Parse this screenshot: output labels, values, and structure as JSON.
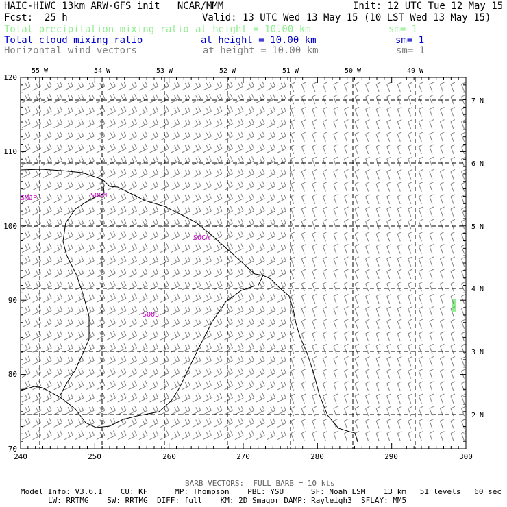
{
  "header": {
    "model_title": "HAIC-HIWC 13km ARW-GFS init   NCAR/MMM",
    "init": "Init: 12 UTC Tue 12 May 15",
    "fcst_label": "Fcst:",
    "fcst_value": "25 h",
    "valid": "Valid: 13 UTC Wed 13 May 15 (10 LST Wed 13 May 15)",
    "fields": [
      {
        "name": "Total precipitation mixing ratio",
        "level": "at height = 10.00 km",
        "sm": "sm= 1",
        "color": "#90ee90"
      },
      {
        "name": "Total cloud mixing ratio",
        "level": "at height = 10.00 km",
        "sm": "sm= 1",
        "color": "#0000cc"
      },
      {
        "name": "Horizontal wind vectors",
        "level": "at height = 10.00 km",
        "sm": "sm= 1",
        "color": "#808080"
      }
    ]
  },
  "map": {
    "x_ticks": [
      "240",
      "250",
      "260",
      "270",
      "280",
      "290",
      "300"
    ],
    "y_ticks": [
      "70",
      "80",
      "90",
      "100",
      "110",
      "120"
    ],
    "lon_labels": [
      "55 W",
      "54 W",
      "53 W",
      "52 W",
      "51 W",
      "50 W",
      "49 W"
    ],
    "lat_labels": [
      "7 N",
      "6 N",
      "5 N",
      "4 N",
      "3 N",
      "2 N"
    ],
    "stations": [
      "SMJP",
      "SOGM",
      "SOCA",
      "SOOS"
    ],
    "station_color": "#cc00cc",
    "coast_color": "#000000",
    "grid_color": "#000000",
    "barb_color": "#808080",
    "echo_color": "#90ee90"
  },
  "footer": {
    "barb_note": "BARB VECTORS:  FULL BARB = 10 kts",
    "line1": "Model Info: V3.6.1    CU: KF      MP: Thompson    PBL: YSU      SF: Noah LSM    13 km   51 levels   60 sec",
    "line2": "LW: RRTMG    SW: RRTMG  DIFF: full    KM: 2D Smagor DAMP: Rayleigh3  SFLAY: MM5"
  }
}
